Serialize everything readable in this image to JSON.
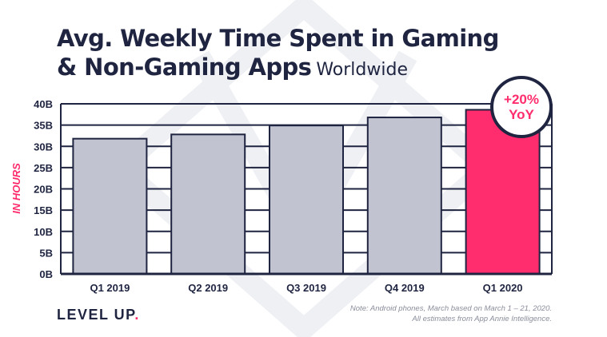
{
  "header": {
    "title_line1": "Avg. Weekly Time Spent in Gaming",
    "title_line2": "& Non-Gaming Apps",
    "subtitle": "Worldwide"
  },
  "badge": {
    "line1": "+20%",
    "line2": "YoY"
  },
  "footer": {
    "logo_text": "LEVEL UP",
    "logo_dot": ".",
    "note_line1": "Note: Android phones, March based on March 1 – 21, 2020.",
    "note_line2": "All estimates from App Annie Intelligence."
  },
  "colors": {
    "bar": "#c1c4d0",
    "highlight": "#ff2d6d",
    "outline": "#1f2440"
  },
  "chart_data": {
    "type": "bar",
    "title": "Avg. Weekly Time Spent in Gaming & Non-Gaming Apps",
    "subtitle": "Worldwide",
    "xlabel": "",
    "ylabel": "IN HOURS",
    "categories": [
      "Q1 2019",
      "Q2 2019",
      "Q3 2019",
      "Q4 2019",
      "Q1 2020"
    ],
    "values": [
      31.8,
      32.8,
      34.9,
      36.8,
      38.6
    ],
    "highlight_index": 4,
    "ylim": [
      0,
      40
    ],
    "yticks": [
      "0B",
      "5B",
      "10B",
      "15B",
      "20B",
      "25B",
      "30B",
      "35B",
      "40B"
    ],
    "grid": true
  }
}
